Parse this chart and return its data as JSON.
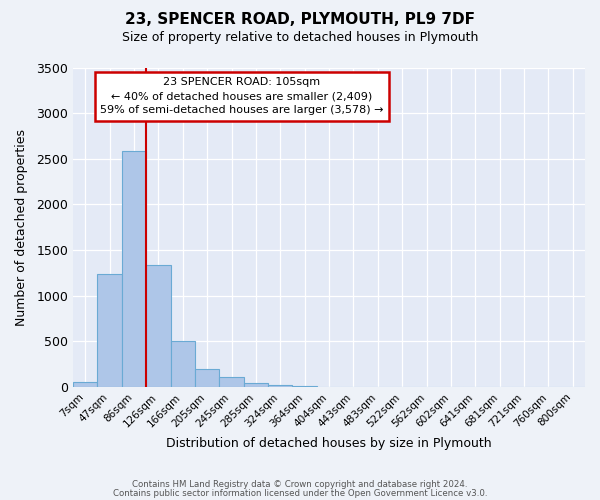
{
  "title": "23, SPENCER ROAD, PLYMOUTH, PL9 7DF",
  "subtitle": "Size of property relative to detached houses in Plymouth",
  "xlabel": "Distribution of detached houses by size in Plymouth",
  "ylabel": "Number of detached properties",
  "bin_labels": [
    "7sqm",
    "47sqm",
    "86sqm",
    "126sqm",
    "166sqm",
    "205sqm",
    "245sqm",
    "285sqm",
    "324sqm",
    "364sqm",
    "404sqm",
    "443sqm",
    "483sqm",
    "522sqm",
    "562sqm",
    "602sqm",
    "641sqm",
    "681sqm",
    "721sqm",
    "760sqm",
    "800sqm"
  ],
  "bin_values": [
    50,
    1240,
    2590,
    1340,
    500,
    200,
    110,
    45,
    20,
    8,
    3,
    2,
    1,
    0,
    0,
    0,
    0,
    0,
    0,
    0,
    0
  ],
  "bar_color": "#aec6e8",
  "bar_edge_color": "#6aaad4",
  "vline_color": "#cc0000",
  "vline_x": 2.5,
  "annotation_title": "23 SPENCER ROAD: 105sqm",
  "annotation_line1": "← 40% of detached houses are smaller (2,409)",
  "annotation_line2": "59% of semi-detached houses are larger (3,578) →",
  "ylim": [
    0,
    3500
  ],
  "yticks": [
    0,
    500,
    1000,
    1500,
    2000,
    2500,
    3000,
    3500
  ],
  "footer1": "Contains HM Land Registry data © Crown copyright and database right 2024.",
  "footer2": "Contains public sector information licensed under the Open Government Licence v3.0.",
  "bg_color": "#eef2f8",
  "plot_bg_color": "#e4eaf6"
}
